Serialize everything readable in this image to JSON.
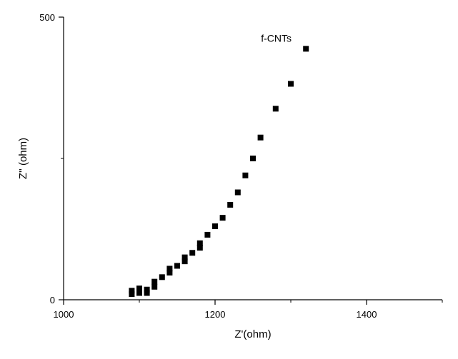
{
  "chart_data": {
    "type": "scatter",
    "title": "",
    "xlabel": "Z'(ohm)",
    "ylabel": "Z'' (ohm)",
    "xlim": [
      1000,
      1500
    ],
    "ylim": [
      0,
      500
    ],
    "x_ticks": [
      1000,
      1200,
      1400
    ],
    "y_ticks": [
      0,
      500
    ],
    "x_minor_ticks": [
      1100,
      1300,
      1500
    ],
    "y_minor_ticks": [
      250
    ],
    "grid": false,
    "marker": "square",
    "marker_color": "#000000",
    "annotation": "f-CNTs",
    "series": [
      {
        "name": "f-CNTs",
        "points": [
          [
            1090,
            10
          ],
          [
            1090,
            16
          ],
          [
            1100,
            12
          ],
          [
            1100,
            20
          ],
          [
            1110,
            12
          ],
          [
            1110,
            18
          ],
          [
            1120,
            23
          ],
          [
            1120,
            32
          ],
          [
            1130,
            40
          ],
          [
            1140,
            48
          ],
          [
            1140,
            55
          ],
          [
            1150,
            60
          ],
          [
            1160,
            68
          ],
          [
            1160,
            75
          ],
          [
            1170,
            83
          ],
          [
            1180,
            92
          ],
          [
            1180,
            100
          ],
          [
            1190,
            115
          ],
          [
            1200,
            130
          ],
          [
            1210,
            145
          ],
          [
            1220,
            168
          ],
          [
            1230,
            190
          ],
          [
            1240,
            220
          ],
          [
            1250,
            250
          ],
          [
            1260,
            287
          ],
          [
            1280,
            338
          ],
          [
            1300,
            382
          ],
          [
            1320,
            444
          ]
        ]
      }
    ]
  }
}
